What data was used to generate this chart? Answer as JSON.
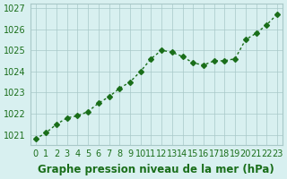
{
  "x": [
    0,
    1,
    2,
    3,
    4,
    5,
    6,
    7,
    8,
    9,
    10,
    11,
    12,
    13,
    14,
    15,
    16,
    17,
    18,
    19,
    20,
    21,
    22,
    23
  ],
  "y": [
    1020.8,
    1021.1,
    1021.5,
    1021.8,
    1021.9,
    1022.1,
    1022.5,
    1022.8,
    1023.2,
    1023.5,
    1024.0,
    1024.6,
    1025.0,
    1024.9,
    1024.7,
    1024.4,
    1024.3,
    1024.5,
    1024.5,
    1024.6,
    1025.5,
    1025.8,
    1026.2,
    1026.7
  ],
  "line_color": "#1a6e1a",
  "marker": "D",
  "marker_size": 3,
  "bg_color": "#d8f0f0",
  "grid_color": "#a8c8c8",
  "xlabel": "Graphe pression niveau de la mer (hPa)",
  "xlabel_fontsize": 8.5,
  "tick_fontsize": 7,
  "ytick_labels": [
    "1021",
    "1022",
    "1023",
    "1024",
    "1025",
    "1026",
    "1027"
  ],
  "ytick_values": [
    1021,
    1022,
    1023,
    1024,
    1025,
    1026,
    1027
  ],
  "ylim": [
    1020.5,
    1027.2
  ],
  "xlim": [
    -0.5,
    23.5
  ],
  "xtick_labels": [
    "0",
    "1",
    "2",
    "3",
    "4",
    "5",
    "6",
    "7",
    "8",
    "9",
    "10",
    "11",
    "12",
    "13",
    "14",
    "15",
    "16",
    "17",
    "18",
    "19",
    "20",
    "21",
    "22",
    "23"
  ]
}
